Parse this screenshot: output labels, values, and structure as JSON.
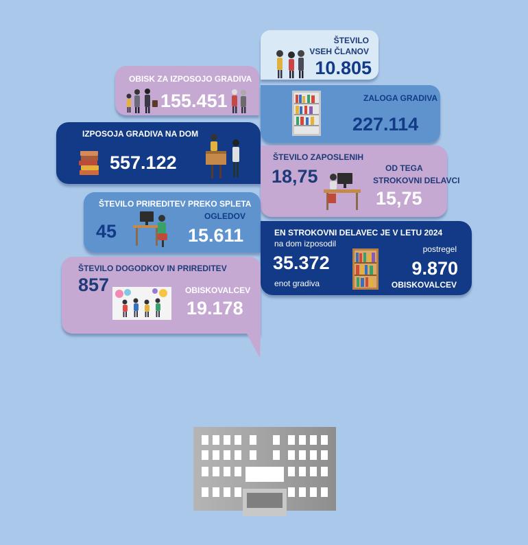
{
  "members": {
    "label_line1": "ŠTEVILO",
    "label_line2": "VSEH ČLANOV",
    "value": "10.805"
  },
  "visits": {
    "label": "OBISK ZA IZPOSOJO GRADIVA",
    "value": "155.451"
  },
  "stock": {
    "label": "ZALOGA GRADIVA",
    "value": "227.114"
  },
  "home_loans": {
    "label": "IZPOSOJA GRADIVA NA DOM",
    "value": "557.122"
  },
  "staff": {
    "label": "ŠTEVILO ZAPOSLENIH",
    "value": "18,75",
    "sub_label_line1": "OD TEGA",
    "sub_label_line2": "STROKOVNI DELAVCI",
    "sub_value": "15,75"
  },
  "online_events": {
    "label": "ŠTEVILO PRIREDITEV PREKO SPLETA",
    "value": "45",
    "views_label": "OGLEDOV",
    "views_value": "15.611"
  },
  "per_worker": {
    "title": "EN STROKOVNI DELAVEC JE V LETU 2024",
    "lent_label": "na dom izposodil",
    "lent_value": "35.372",
    "lent_unit": "enot gradiva",
    "served_label": "postregel",
    "served_value": "9.870",
    "served_unit": "OBISKOVALCEV"
  },
  "events": {
    "label": "ŠTEVILO DOGODKOV IN PRIREDITEV",
    "value": "857",
    "visitors_label": "OBISKOVALCEV",
    "visitors_value": "19.178"
  },
  "colors": {
    "background": "#a9c8ea",
    "lilac": "#c5a9d2",
    "blue": "#5f93ce",
    "navy": "#123a86",
    "pale": "#d9eaf6",
    "building": "#a4a4a4"
  }
}
